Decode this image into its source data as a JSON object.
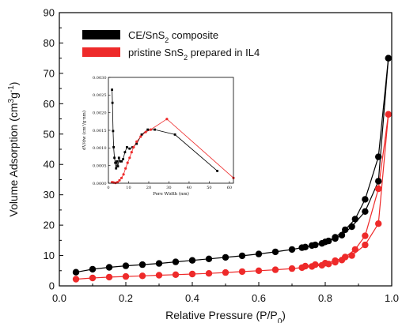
{
  "chart_data": [
    {
      "type": "line",
      "xlabel": "Relative Pressure (P/P",
      "xlabel_sub": "0",
      "xlabel_end": ")",
      "ylabel": "Volume Adsorption (cm",
      "ylabel_sup1": "3",
      "ylabel_mid": "g",
      "ylabel_sup2": "-1",
      "ylabel_end": ")",
      "xlim": [
        0.0,
        1.0
      ],
      "ylim": [
        0,
        90
      ],
      "xticks": [
        "0.0",
        "0.2",
        "0.4",
        "0.6",
        "0.8",
        "1.0"
      ],
      "yticks": [
        "0",
        "10",
        "20",
        "30",
        "40",
        "50",
        "60",
        "70",
        "80",
        "90"
      ],
      "legend_position": "top-left",
      "series": [
        {
          "name": "CE/SnS",
          "name_sub": "2",
          "name_end": " composite",
          "color": "#000000",
          "adsorption": {
            "x": [
              0.05,
              0.1,
              0.15,
              0.2,
              0.25,
              0.3,
              0.35,
              0.4,
              0.45,
              0.5,
              0.55,
              0.6,
              0.65,
              0.7,
              0.73,
              0.76,
              0.79,
              0.81,
              0.83,
              0.85,
              0.88,
              0.92,
              0.96,
              0.99
            ],
            "y": [
              4.5,
              5.5,
              6.1,
              6.6,
              7.0,
              7.4,
              7.9,
              8.4,
              8.9,
              9.4,
              9.9,
              10.5,
              11.2,
              12.0,
              12.6,
              13.3,
              14.0,
              14.8,
              15.6,
              16.7,
              19.5,
              24.5,
              34.5,
              75.0
            ]
          },
          "desorption": {
            "x": [
              0.99,
              0.96,
              0.92,
              0.89,
              0.86,
              0.83,
              0.8,
              0.77,
              0.74
            ],
            "y": [
              75.0,
              42.5,
              28.5,
              22.0,
              18.5,
              16.0,
              14.5,
              13.5,
              12.8
            ]
          }
        },
        {
          "name": "pristine SnS",
          "name_sub": "2",
          "name_end": " prepared in IL4",
          "color": "#ee2a2a",
          "adsorption": {
            "x": [
              0.05,
              0.1,
              0.15,
              0.2,
              0.25,
              0.3,
              0.35,
              0.4,
              0.45,
              0.5,
              0.55,
              0.6,
              0.65,
              0.7,
              0.73,
              0.76,
              0.79,
              0.81,
              0.83,
              0.85,
              0.88,
              0.92,
              0.96,
              0.99
            ],
            "y": [
              2.2,
              2.6,
              2.9,
              3.1,
              3.3,
              3.5,
              3.7,
              3.9,
              4.1,
              4.4,
              4.7,
              5.0,
              5.3,
              5.7,
              6.0,
              6.4,
              6.8,
              7.2,
              7.8,
              8.5,
              10.0,
              13.5,
              20.5,
              56.5
            ]
          },
          "desorption": {
            "x": [
              0.99,
              0.96,
              0.92,
              0.89,
              0.86,
              0.83,
              0.8,
              0.77,
              0.74
            ],
            "y": [
              56.5,
              32.0,
              16.5,
              12.0,
              9.5,
              8.3,
              7.5,
              7.0,
              6.5
            ]
          }
        }
      ]
    },
    {
      "type": "line",
      "role": "inset",
      "xlabel": "Pore Width (nm)",
      "ylabel": "dV/dw (cm³/g·nm)",
      "xlim": [
        0,
        62
      ],
      "ylim": [
        0,
        0.003
      ],
      "xticks": [
        "0",
        "10",
        "20",
        "30",
        "40",
        "50",
        "60"
      ],
      "yticks": [
        "0.0000",
        "0.0005",
        "0.0010",
        "0.0015",
        "0.0020",
        "0.0025",
        "0.0030"
      ],
      "series": [
        {
          "color": "#000000",
          "x": [
            1.8,
            2.0,
            2.3,
            2.6,
            3.0,
            3.4,
            3.8,
            4.2,
            4.7,
            5.2,
            5.8,
            6.5,
            7.3,
            8.2,
            9.2,
            10.5,
            12.0,
            14.0,
            16.5,
            19.5,
            23.0,
            33.0,
            54.0
          ],
          "y": [
            0.00265,
            0.00228,
            0.00148,
            0.00102,
            0.00072,
            0.00058,
            0.00042,
            0.00062,
            0.00048,
            0.00072,
            0.00062,
            0.00062,
            0.00068,
            0.00088,
            0.00102,
            0.00098,
            0.00102,
            0.00112,
            0.00138,
            0.00152,
            0.00152,
            0.00138,
            0.00035
          ]
        },
        {
          "color": "#ee2a2a",
          "x": [
            1.8,
            2.5,
            3.5,
            4.5,
            5.5,
            6.5,
            7.5,
            8.5,
            9.5,
            10.5,
            11.5,
            12.5,
            14.0,
            16.0,
            18.5,
            21.0,
            29.0,
            62.0
          ],
          "y": [
            3e-05,
            2e-05,
            1e-05,
            3e-05,
            8e-05,
            0.00015,
            0.00025,
            0.00042,
            0.00058,
            0.00072,
            0.00088,
            0.00102,
            0.00118,
            0.00132,
            0.00145,
            0.00152,
            0.00182,
            0.00015
          ]
        }
      ]
    }
  ]
}
